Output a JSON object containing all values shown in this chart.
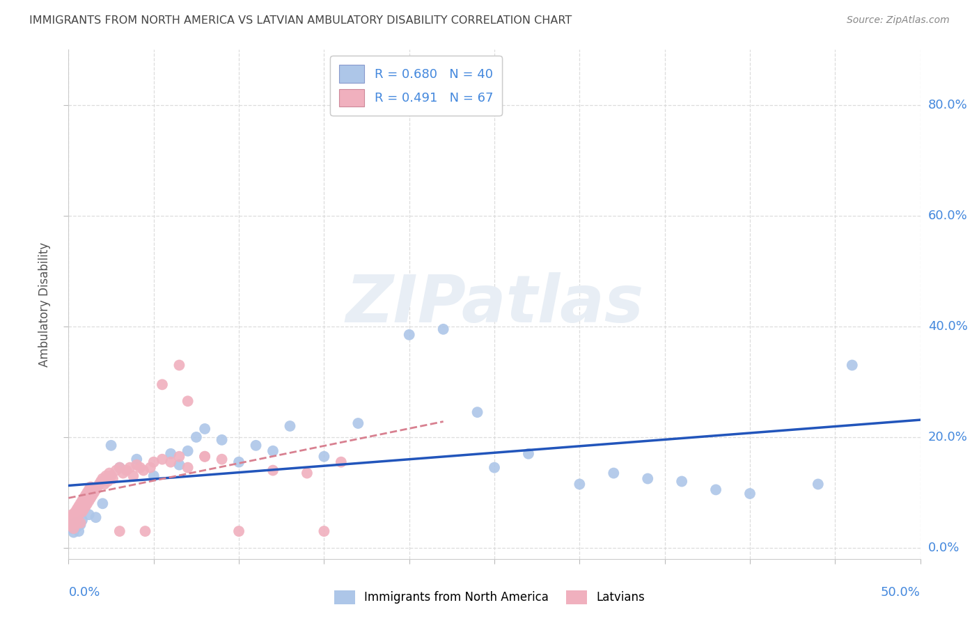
{
  "title": "IMMIGRANTS FROM NORTH AMERICA VS LATVIAN AMBULATORY DISABILITY CORRELATION CHART",
  "source": "Source: ZipAtlas.com",
  "ylabel": "Ambulatory Disability",
  "xlim": [
    0,
    0.5
  ],
  "ylim": [
    -0.02,
    0.9
  ],
  "blue_R": 0.68,
  "blue_N": 40,
  "pink_R": 0.491,
  "pink_N": 67,
  "blue_color": "#adc6e8",
  "pink_color": "#f0b0be",
  "blue_line_color": "#2255bb",
  "pink_line_color": "#d88090",
  "legend_label_blue": "Immigrants from North America",
  "legend_label_pink": "Latvians",
  "background_color": "#ffffff",
  "grid_color": "#d5d5d5",
  "title_color": "#444444",
  "axis_label_color": "#4488dd",
  "watermark_text": "ZIPatlas",
  "ytick_values": [
    0.0,
    0.2,
    0.4,
    0.6,
    0.8
  ],
  "xtick_values": [
    0.0,
    0.05,
    0.1,
    0.15,
    0.2,
    0.25,
    0.3,
    0.35,
    0.4,
    0.45,
    0.5
  ],
  "blue_x": [
    0.001,
    0.002,
    0.003,
    0.004,
    0.005,
    0.006,
    0.007,
    0.008,
    0.012,
    0.016,
    0.02,
    0.025,
    0.03,
    0.04,
    0.05,
    0.06,
    0.065,
    0.07,
    0.075,
    0.08,
    0.09,
    0.1,
    0.11,
    0.12,
    0.13,
    0.15,
    0.17,
    0.2,
    0.22,
    0.24,
    0.25,
    0.27,
    0.3,
    0.32,
    0.34,
    0.36,
    0.38,
    0.4,
    0.44,
    0.46
  ],
  "blue_y": [
    0.04,
    0.035,
    0.028,
    0.045,
    0.038,
    0.03,
    0.042,
    0.05,
    0.06,
    0.055,
    0.08,
    0.185,
    0.145,
    0.16,
    0.13,
    0.17,
    0.15,
    0.175,
    0.2,
    0.215,
    0.195,
    0.155,
    0.185,
    0.175,
    0.22,
    0.165,
    0.225,
    0.385,
    0.395,
    0.245,
    0.145,
    0.17,
    0.115,
    0.135,
    0.125,
    0.12,
    0.105,
    0.098,
    0.115,
    0.33
  ],
  "pink_x": [
    0.001,
    0.001,
    0.002,
    0.002,
    0.003,
    0.003,
    0.004,
    0.004,
    0.005,
    0.005,
    0.006,
    0.006,
    0.007,
    0.007,
    0.008,
    0.008,
    0.009,
    0.009,
    0.01,
    0.01,
    0.011,
    0.011,
    0.012,
    0.012,
    0.013,
    0.013,
    0.014,
    0.015,
    0.016,
    0.017,
    0.018,
    0.019,
    0.02,
    0.021,
    0.022,
    0.023,
    0.024,
    0.025,
    0.026,
    0.028,
    0.03,
    0.032,
    0.034,
    0.036,
    0.038,
    0.04,
    0.042,
    0.044,
    0.048,
    0.05,
    0.055,
    0.06,
    0.065,
    0.07,
    0.08,
    0.09,
    0.1,
    0.12,
    0.14,
    0.16,
    0.055,
    0.065,
    0.07,
    0.08,
    0.03,
    0.045,
    0.15
  ],
  "pink_y": [
    0.04,
    0.055,
    0.045,
    0.06,
    0.035,
    0.05,
    0.042,
    0.065,
    0.055,
    0.07,
    0.06,
    0.075,
    0.045,
    0.08,
    0.065,
    0.085,
    0.07,
    0.09,
    0.075,
    0.095,
    0.08,
    0.1,
    0.085,
    0.105,
    0.09,
    0.11,
    0.095,
    0.1,
    0.105,
    0.11,
    0.115,
    0.12,
    0.125,
    0.115,
    0.13,
    0.12,
    0.135,
    0.13,
    0.125,
    0.14,
    0.145,
    0.135,
    0.14,
    0.145,
    0.13,
    0.15,
    0.145,
    0.14,
    0.145,
    0.155,
    0.16,
    0.155,
    0.165,
    0.145,
    0.165,
    0.16,
    0.03,
    0.14,
    0.135,
    0.155,
    0.295,
    0.33,
    0.265,
    0.165,
    0.03,
    0.03,
    0.03
  ]
}
